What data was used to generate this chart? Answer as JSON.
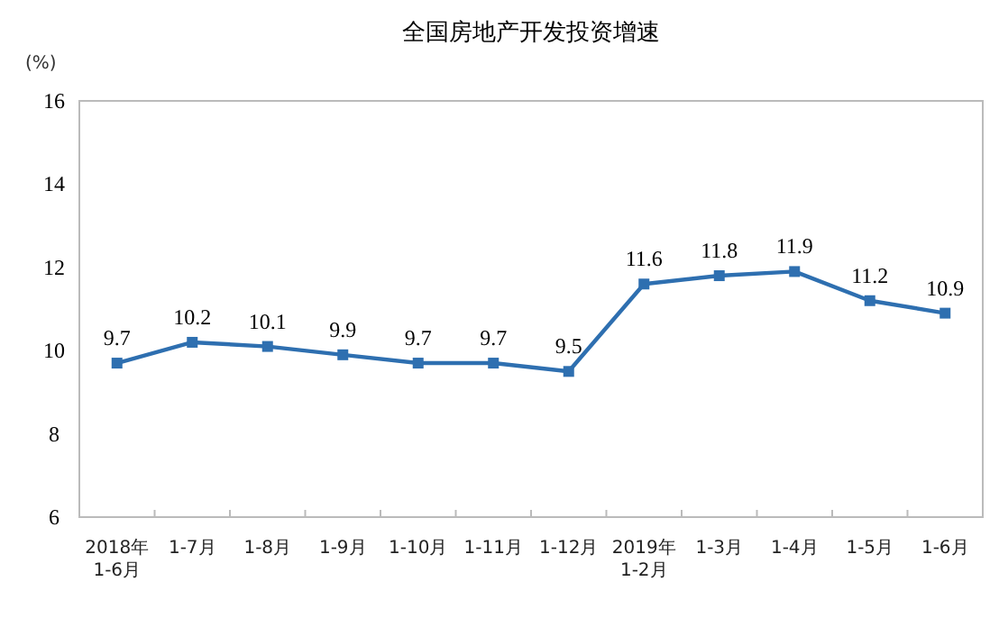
{
  "chart_data": {
    "type": "line",
    "title": "全国房地产开发投资增速",
    "ylabel": "(%)",
    "categories": [
      "2018年\n1-6月",
      "1-7月",
      "1-8月",
      "1-9月",
      "1-10月",
      "1-11月",
      "1-12月",
      "2019年\n1-2月",
      "1-3月",
      "1-4月",
      "1-5月",
      "1-6月"
    ],
    "series": [
      {
        "color": "#2e6fb0",
        "values": [
          9.7,
          10.2,
          10.1,
          9.9,
          9.7,
          9.7,
          9.5,
          11.6,
          11.8,
          11.9,
          11.2,
          10.9
        ]
      }
    ],
    "ylim": [
      6,
      16
    ],
    "yticks": [
      6,
      8,
      10,
      12,
      14,
      16
    ],
    "marker": "square",
    "data_labels": true
  }
}
